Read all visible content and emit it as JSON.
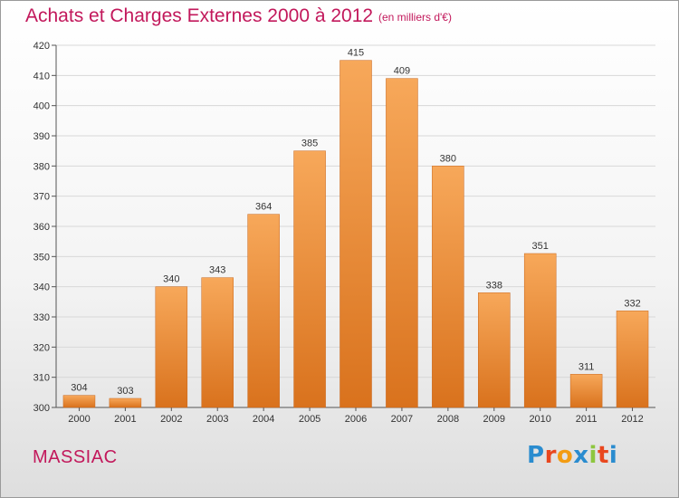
{
  "header": {
    "title": "Achats et Charges Externes 2000 à 2012",
    "subtitle": "(en milliers d'€)"
  },
  "footer": {
    "commune": "MASSIAC",
    "logo_letters": [
      "P",
      "r",
      "o",
      "x",
      "i",
      "t",
      "i"
    ],
    "logo_colors": [
      "#2a8ccf",
      "#e9471e",
      "#f39c12",
      "#2a8ccf",
      "#8dc63f",
      "#e9471e",
      "#2a8ccf"
    ]
  },
  "chart_data": {
    "type": "bar",
    "categories": [
      "2000",
      "2001",
      "2002",
      "2003",
      "2004",
      "2005",
      "2006",
      "2007",
      "2008",
      "2009",
      "2010",
      "2011",
      "2012"
    ],
    "values": [
      304,
      303,
      340,
      343,
      364,
      385,
      415,
      409,
      380,
      338,
      351,
      311,
      332
    ],
    "ylim": [
      300,
      420
    ],
    "yticks": [
      300,
      310,
      320,
      330,
      340,
      350,
      360,
      370,
      380,
      390,
      400,
      410,
      420
    ],
    "grid": true,
    "bar_color_top": "#f7a85a",
    "bar_color_bottom": "#d9721d",
    "grid_color": "#d8d8d8",
    "text_color": "#333333",
    "title_color": "#c2185b"
  }
}
